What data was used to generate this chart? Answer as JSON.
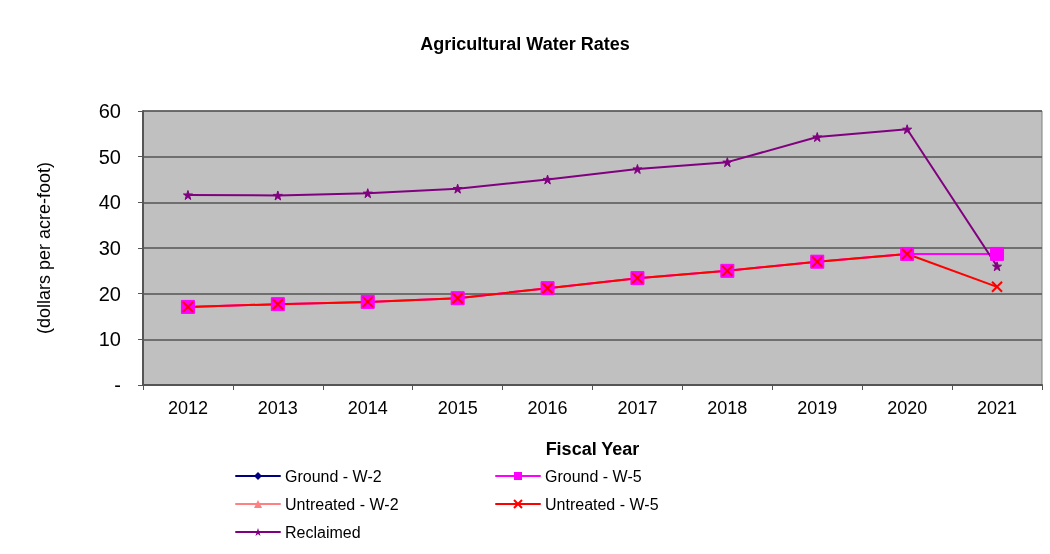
{
  "chart_data": {
    "type": "line",
    "title": "Agricultural Water Rates",
    "xlabel": "Fiscal Year",
    "ylabel": "(dollars per acre-foot)",
    "categories": [
      "2012",
      "2013",
      "2014",
      "2015",
      "2016",
      "2017",
      "2018",
      "2019",
      "2020",
      "2021"
    ],
    "ylim": [
      0,
      60
    ],
    "yticks": [
      {
        "value": 0,
        "label": "-"
      },
      10,
      20,
      30,
      40,
      50,
      60
    ],
    "grid": "y",
    "legend": "bottom",
    "series": [
      {
        "name": "Ground - W-2",
        "color": "#000080",
        "marker": "diamond",
        "values": [
          null,
          null,
          null,
          null,
          null,
          null,
          null,
          null,
          null,
          null
        ]
      },
      {
        "name": "Ground - W-5",
        "color": "#ff00ff",
        "marker": "square",
        "values": [
          17.1,
          17.7,
          18.2,
          19,
          21.2,
          23.4,
          25,
          27,
          28.7,
          28.7
        ]
      },
      {
        "name": "Untreated - W-2",
        "color": "#ff8080",
        "marker": "triangle",
        "values": [
          null,
          null,
          null,
          null,
          null,
          null,
          null,
          null,
          null,
          null
        ]
      },
      {
        "name": "Untreated - W-5",
        "color": "#ff0000",
        "marker": "cross",
        "values": [
          17.1,
          17.7,
          18.2,
          19,
          21.2,
          23.4,
          25,
          27,
          28.7,
          21.5
        ]
      },
      {
        "name": "Reclaimed",
        "color": "#800080",
        "marker": "star",
        "values": [
          41.6,
          41.5,
          42,
          43,
          45,
          47.3,
          48.8,
          54.3,
          56,
          26
        ]
      }
    ]
  }
}
